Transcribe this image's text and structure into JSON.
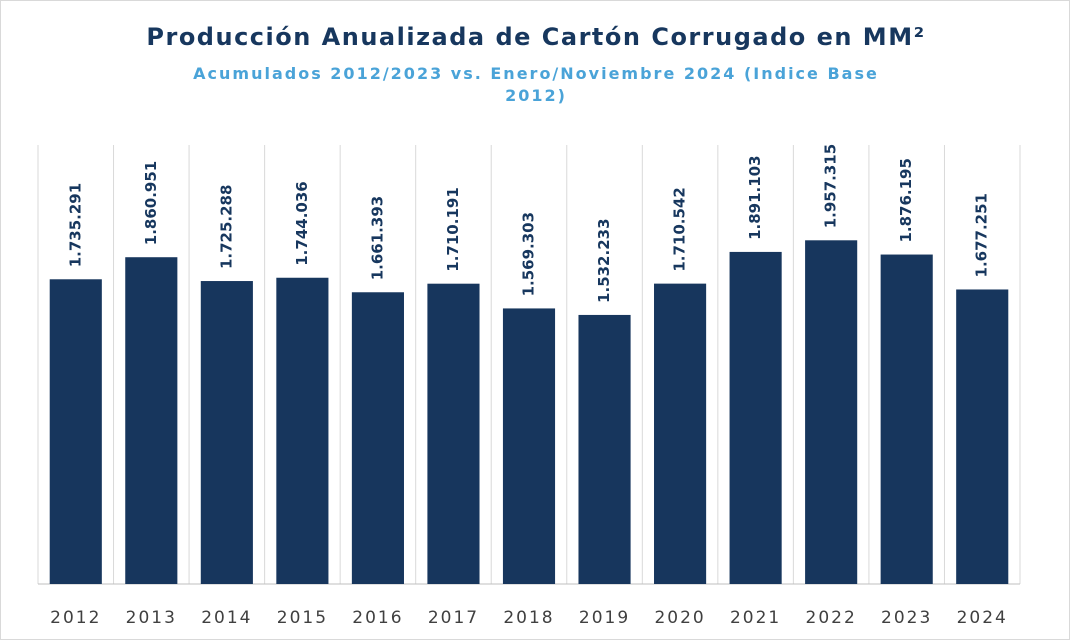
{
  "chart_data": {
    "type": "bar",
    "title": "Producción Anualizada de Cartón Corrugado en MM²",
    "subtitle": "Acumulados 2012/2023 vs. Enero/Noviembre 2024 (Indice Base 2012)",
    "categories": [
      "2012",
      "2013",
      "2014",
      "2015",
      "2016",
      "2017",
      "2018",
      "2019",
      "2020",
      "2021",
      "2022",
      "2023",
      "2024"
    ],
    "values": [
      1735291,
      1860951,
      1725288,
      1744036,
      1661393,
      1710191,
      1569303,
      1532233,
      1710542,
      1891103,
      1957315,
      1876195,
      1677251
    ],
    "value_labels": [
      "1.735.291",
      "1.860.951",
      "1.725.288",
      "1.744.036",
      "1.661.393",
      "1.710.191",
      "1.569.303",
      "1.532.233",
      "1.710.542",
      "1.891.103",
      "1.957.315",
      "1.876.195",
      "1.677.251"
    ],
    "color": "#17365d",
    "ylim": [
      0,
      2500000
    ]
  }
}
